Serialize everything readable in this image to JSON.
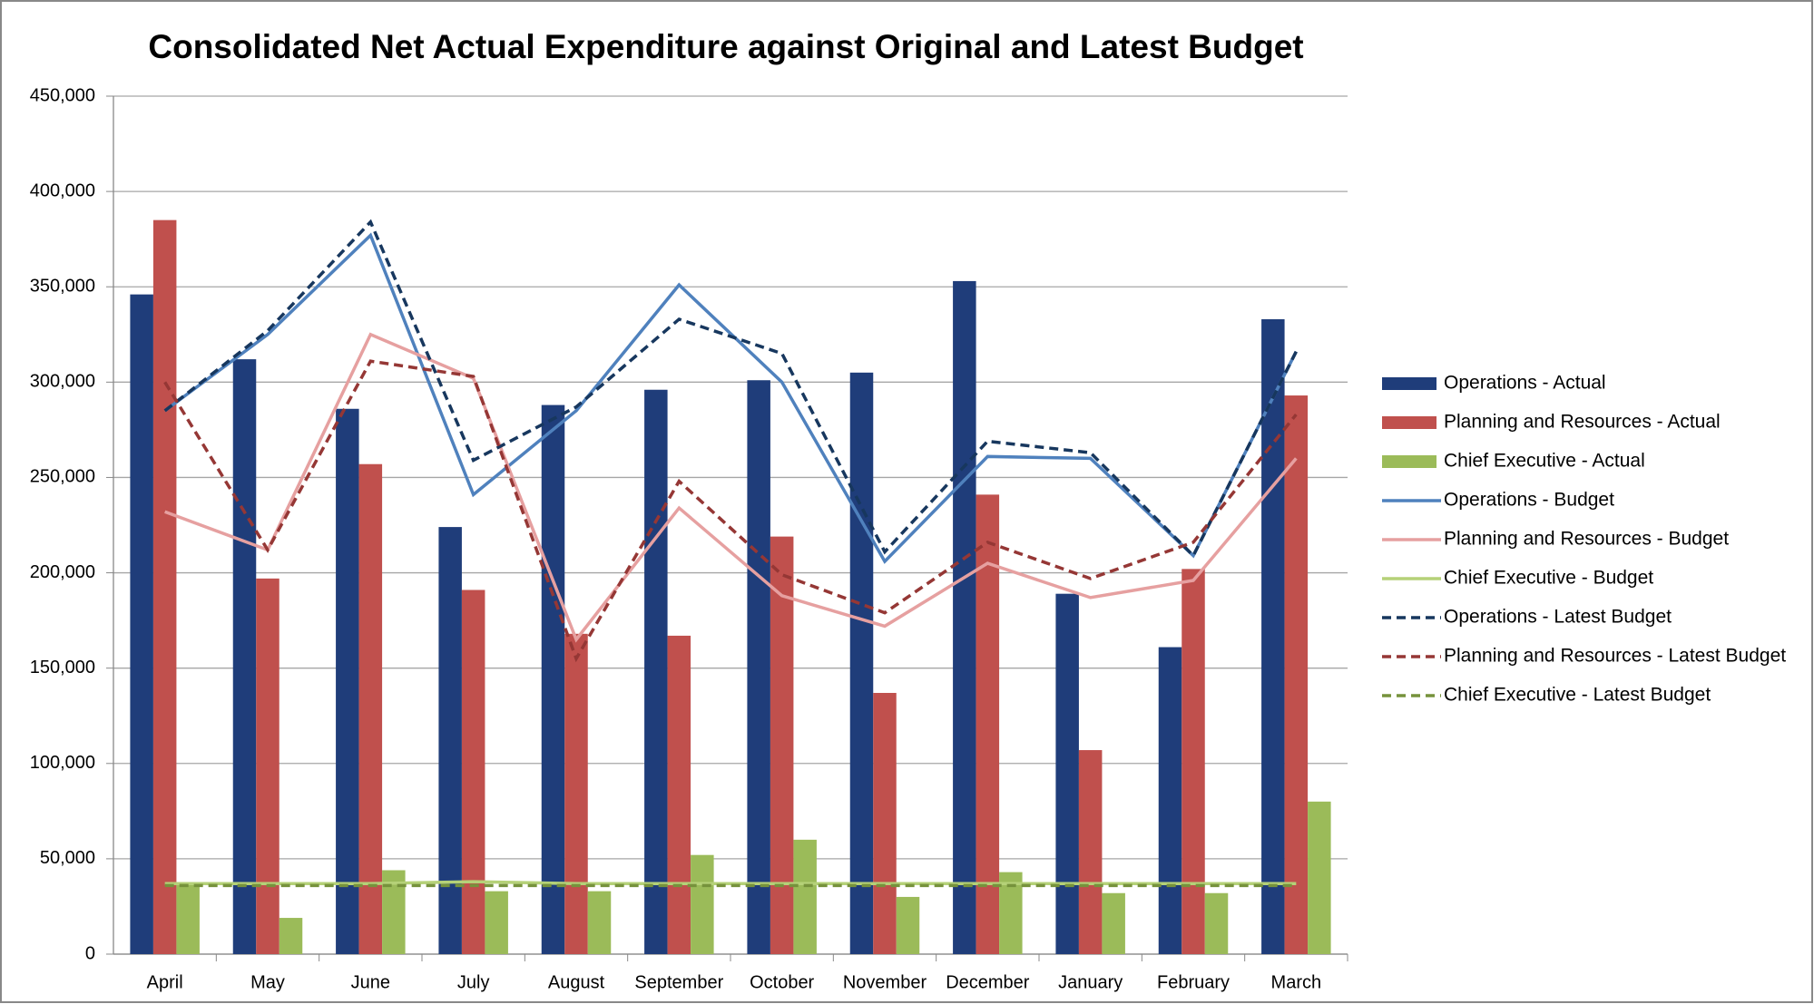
{
  "chart_data": {
    "type": "bar",
    "title": "Consolidated Net Actual Expenditure against Original and Latest Budget",
    "categories": [
      "April",
      "May",
      "June",
      "July",
      "August",
      "September",
      "October",
      "November",
      "December",
      "January",
      "February",
      "March"
    ],
    "ylim": [
      0,
      450000
    ],
    "yticks": [
      0,
      {
        "value": 50000,
        "label": "50,000"
      },
      {
        "value": 100000,
        "label": "100,000"
      },
      {
        "value": 150000,
        "label": "150,000"
      },
      {
        "value": 200000,
        "label": "200,000"
      },
      {
        "value": 250000,
        "label": "250,000"
      },
      {
        "value": 300000,
        "label": "300,000"
      },
      {
        "value": 350000,
        "label": "350,000"
      },
      {
        "value": 400000,
        "label": "400,000"
      },
      {
        "value": 450000,
        "label": "450,000"
      }
    ],
    "grid": true,
    "legend": "right",
    "series": [
      {
        "name": "Operations - Actual",
        "type": "bar",
        "color": "#1f3d7a",
        "values": [
          346000,
          312000,
          286000,
          224000,
          288000,
          296000,
          301000,
          305000,
          353000,
          189000,
          161000,
          333000
        ]
      },
      {
        "name": "Planning and Resources - Actual",
        "type": "bar",
        "color": "#c0504d",
        "values": [
          385000,
          197000,
          257000,
          191000,
          168000,
          167000,
          219000,
          137000,
          241000,
          107000,
          202000,
          293000
        ]
      },
      {
        "name": "Chief Executive - Actual",
        "type": "bar",
        "color": "#9bbb59",
        "values": [
          37000,
          19000,
          44000,
          33000,
          33000,
          52000,
          60000,
          30000,
          43000,
          32000,
          32000,
          80000
        ]
      },
      {
        "name": "Operations - Budget",
        "type": "line",
        "color": "#4f81bd",
        "dashed": false,
        "values": [
          285000,
          325000,
          377000,
          241000,
          285000,
          351000,
          300000,
          206000,
          261000,
          260000,
          209000,
          316000
        ]
      },
      {
        "name": "Planning and Resources - Budget",
        "type": "line",
        "color": "#e6a0a0",
        "dashed": false,
        "values": [
          232000,
          212000,
          325000,
          302000,
          165000,
          234000,
          188000,
          172000,
          205000,
          187000,
          196000,
          260000
        ]
      },
      {
        "name": "Chief Executive - Budget",
        "type": "line",
        "color": "#b5d178",
        "dashed": false,
        "values": [
          37000,
          37000,
          37000,
          38000,
          37000,
          37000,
          37000,
          37000,
          37000,
          37000,
          37000,
          37000
        ]
      },
      {
        "name": "Operations - Latest Budget",
        "type": "line",
        "color": "#17375e",
        "dashed": true,
        "values": [
          285000,
          327000,
          384000,
          259000,
          287000,
          333000,
          315000,
          211000,
          269000,
          263000,
          209000,
          316000
        ]
      },
      {
        "name": "Planning and Resources - Latest Budget",
        "type": "line",
        "color": "#953735",
        "dashed": true,
        "values": [
          300000,
          212000,
          311000,
          303000,
          155000,
          248000,
          199000,
          179000,
          216000,
          197000,
          216000,
          283000
        ]
      },
      {
        "name": "Chief Executive - Latest Budget",
        "type": "line",
        "color": "#76923c",
        "dashed": true,
        "values": [
          36000,
          36000,
          36000,
          36000,
          36000,
          36000,
          36000,
          36000,
          36000,
          36000,
          36000,
          36000
        ]
      }
    ]
  }
}
